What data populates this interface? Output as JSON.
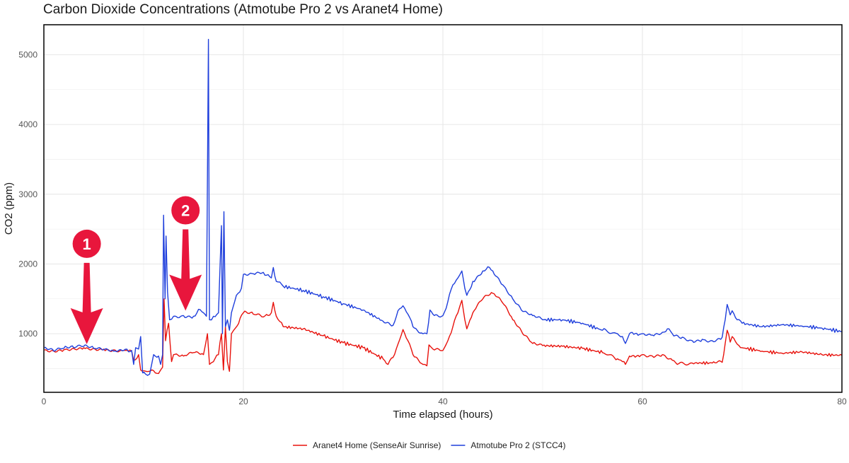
{
  "chart_data": {
    "type": "line",
    "title": "Carbon Dioxide Concentrations (Atmotube Pro 2 vs Aranet4 Home)",
    "xlabel": "Time elapsed (hours)",
    "ylabel": "CO2 (ppm)",
    "xlim": [
      0,
      80
    ],
    "ylim": [
      160,
      5430
    ],
    "x_ticks": [
      0,
      20,
      40,
      60,
      80
    ],
    "y_ticks": [
      1000,
      2000,
      3000,
      4000,
      5000
    ],
    "grid": true,
    "legend_position": "bottom",
    "series": [
      {
        "name": "Aranet4 Home (SenseAir Sunrise)",
        "color": "#e8120c",
        "points": [
          [
            0,
            760
          ],
          [
            1,
            750
          ],
          [
            2,
            770
          ],
          [
            3,
            790
          ],
          [
            4,
            800
          ],
          [
            5,
            790
          ],
          [
            6,
            780
          ],
          [
            7,
            770
          ],
          [
            8,
            760
          ],
          [
            8.8,
            750
          ],
          [
            9,
            620
          ],
          [
            9.5,
            700
          ],
          [
            9.7,
            480
          ],
          [
            10.5,
            460
          ],
          [
            11,
            470
          ],
          [
            11.5,
            430
          ],
          [
            11.9,
            520
          ],
          [
            12.05,
            1500
          ],
          [
            12.2,
            900
          ],
          [
            12.5,
            1150
          ],
          [
            12.8,
            600
          ],
          [
            13,
            700
          ],
          [
            14,
            680
          ],
          [
            15,
            730
          ],
          [
            16,
            700
          ],
          [
            16.4,
            1000
          ],
          [
            16.6,
            560
          ],
          [
            17,
            600
          ],
          [
            17.5,
            700
          ],
          [
            17.8,
            1000
          ],
          [
            18,
            480
          ],
          [
            18.2,
            1100
          ],
          [
            18.4,
            600
          ],
          [
            18.6,
            460
          ],
          [
            18.8,
            1000
          ],
          [
            19.2,
            1080
          ],
          [
            20,
            1300
          ],
          [
            21,
            1280
          ],
          [
            22,
            1240
          ],
          [
            22.8,
            1300
          ],
          [
            23,
            1450
          ],
          [
            23.3,
            1250
          ],
          [
            24,
            1100
          ],
          [
            26,
            1070
          ],
          [
            28,
            970
          ],
          [
            30,
            870
          ],
          [
            32,
            800
          ],
          [
            34,
            640
          ],
          [
            34.5,
            560
          ],
          [
            35,
            660
          ],
          [
            35.5,
            850
          ],
          [
            36,
            1060
          ],
          [
            36.5,
            900
          ],
          [
            37,
            700
          ],
          [
            38,
            560
          ],
          [
            38.4,
            540
          ],
          [
            38.6,
            840
          ],
          [
            39,
            780
          ],
          [
            40,
            760
          ],
          [
            40.5,
            900
          ],
          [
            41,
            1100
          ],
          [
            41.5,
            1300
          ],
          [
            41.9,
            1480
          ],
          [
            42.2,
            1200
          ],
          [
            42.4,
            1070
          ],
          [
            43,
            1300
          ],
          [
            44,
            1500
          ],
          [
            45,
            1580
          ],
          [
            46,
            1440
          ],
          [
            47,
            1200
          ],
          [
            48,
            1000
          ],
          [
            49,
            860
          ],
          [
            50,
            830
          ],
          [
            52,
            820
          ],
          [
            54,
            790
          ],
          [
            56,
            730
          ],
          [
            57.5,
            640
          ],
          [
            58,
            600
          ],
          [
            58.3,
            560
          ],
          [
            58.7,
            680
          ],
          [
            60,
            700
          ],
          [
            61,
            680
          ],
          [
            62,
            700
          ],
          [
            63,
            620
          ],
          [
            63.5,
            560
          ],
          [
            65,
            580
          ],
          [
            67,
            580
          ],
          [
            68,
            590
          ],
          [
            68.3,
            860
          ],
          [
            68.5,
            1050
          ],
          [
            68.8,
            880
          ],
          [
            69,
            960
          ],
          [
            69.5,
            850
          ],
          [
            70,
            800
          ],
          [
            72,
            750
          ],
          [
            74,
            720
          ],
          [
            76,
            740
          ],
          [
            78,
            700
          ],
          [
            80,
            690
          ]
        ]
      },
      {
        "name": "Atmotube Pro 2 (STCC4)",
        "color": "#1f3fdc",
        "points": [
          [
            0,
            790
          ],
          [
            1,
            750
          ],
          [
            2,
            790
          ],
          [
            3,
            800
          ],
          [
            4,
            820
          ],
          [
            5,
            790
          ],
          [
            6,
            770
          ],
          [
            7,
            750
          ],
          [
            8,
            760
          ],
          [
            8.8,
            760
          ],
          [
            9,
            560
          ],
          [
            9.2,
            800
          ],
          [
            9.5,
            780
          ],
          [
            9.7,
            960
          ],
          [
            9.9,
            440
          ],
          [
            10.2,
            420
          ],
          [
            10.6,
            420
          ],
          [
            11,
            700
          ],
          [
            11.5,
            680
          ],
          [
            11.7,
            560
          ],
          [
            11.9,
            700
          ],
          [
            12,
            2700
          ],
          [
            12.15,
            1500
          ],
          [
            12.25,
            2400
          ],
          [
            12.4,
            1600
          ],
          [
            12.6,
            1200
          ],
          [
            13,
            1250
          ],
          [
            14,
            1260
          ],
          [
            15,
            1250
          ],
          [
            15.5,
            1350
          ],
          [
            16,
            1300
          ],
          [
            16.3,
            1250
          ],
          [
            16.5,
            5220
          ],
          [
            16.6,
            1200
          ],
          [
            17,
            1250
          ],
          [
            17.5,
            1300
          ],
          [
            17.8,
            2550
          ],
          [
            17.9,
            1000
          ],
          [
            18.05,
            2750
          ],
          [
            18.2,
            1100
          ],
          [
            18.4,
            1200
          ],
          [
            18.6,
            1050
          ],
          [
            18.8,
            1300
          ],
          [
            19.3,
            1550
          ],
          [
            19.8,
            1650
          ],
          [
            20,
            1850
          ],
          [
            21,
            1860
          ],
          [
            22,
            1880
          ],
          [
            22.8,
            1800
          ],
          [
            23,
            1950
          ],
          [
            23.3,
            1750
          ],
          [
            24,
            1680
          ],
          [
            26,
            1620
          ],
          [
            28,
            1530
          ],
          [
            30,
            1430
          ],
          [
            32,
            1340
          ],
          [
            34,
            1180
          ],
          [
            35,
            1120
          ],
          [
            35.5,
            1330
          ],
          [
            36,
            1400
          ],
          [
            36.5,
            1280
          ],
          [
            37,
            1100
          ],
          [
            38,
            1000
          ],
          [
            38.4,
            1000
          ],
          [
            38.7,
            1340
          ],
          [
            39,
            1280
          ],
          [
            40,
            1260
          ],
          [
            40.5,
            1460
          ],
          [
            41,
            1700
          ],
          [
            41.5,
            1800
          ],
          [
            41.9,
            1900
          ],
          [
            42.2,
            1650
          ],
          [
            42.4,
            1550
          ],
          [
            43,
            1750
          ],
          [
            44,
            1900
          ],
          [
            44.5,
            1960
          ],
          [
            45,
            1900
          ],
          [
            46,
            1700
          ],
          [
            47,
            1500
          ],
          [
            48,
            1320
          ],
          [
            49,
            1260
          ],
          [
            50,
            1200
          ],
          [
            52,
            1200
          ],
          [
            54,
            1150
          ],
          [
            56,
            1050
          ],
          [
            57.5,
            1000
          ],
          [
            58,
            960
          ],
          [
            58.3,
            860
          ],
          [
            58.7,
            1000
          ],
          [
            60,
            1000
          ],
          [
            61,
            980
          ],
          [
            62,
            1020
          ],
          [
            62.5,
            1070
          ],
          [
            63,
            1000
          ],
          [
            64,
            950
          ],
          [
            65,
            900
          ],
          [
            66,
            920
          ],
          [
            67,
            900
          ],
          [
            68,
            950
          ],
          [
            68.3,
            1200
          ],
          [
            68.5,
            1420
          ],
          [
            68.8,
            1270
          ],
          [
            69,
            1330
          ],
          [
            69.5,
            1200
          ],
          [
            70,
            1150
          ],
          [
            72,
            1100
          ],
          [
            74,
            1130
          ],
          [
            76,
            1110
          ],
          [
            78,
            1080
          ],
          [
            80,
            1030
          ]
        ]
      }
    ],
    "annotations": [
      {
        "label": "1",
        "x": 4.3,
        "y": 850
      },
      {
        "label": "2",
        "x": 14.2,
        "y": 1330
      }
    ]
  }
}
